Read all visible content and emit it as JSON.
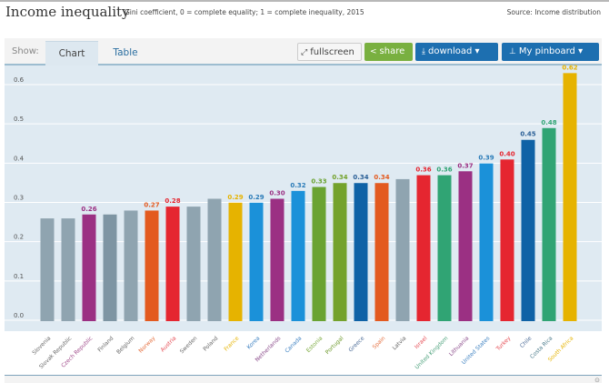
{
  "header": {
    "title": "Income inequality",
    "subtitle": "Gini coefficient, 0 = complete equality; 1 = complete inequality, 2015",
    "source": "Source: Income distribution"
  },
  "toolbar": {
    "show_label": "Show:",
    "tabs": [
      {
        "label": "Chart",
        "active": true
      },
      {
        "label": "Table",
        "active": false
      }
    ],
    "fullscreen_label": "fullscreen",
    "share_label": "share",
    "download_label": "download ▾",
    "pinboard_label": "My pinboard ▾",
    "icons": {
      "fullscreen": "expand-arrows-icon",
      "share": "share-icon",
      "download": "download-icon",
      "pinboard": "pin-icon"
    }
  },
  "corner_icon": "info-icon",
  "chart_data": {
    "type": "bar",
    "title": "Income inequality",
    "subtitle": "Gini coefficient, 0 = complete equality; 1 = complete inequality, 2015",
    "xlabel": "",
    "ylabel": "",
    "ylim": [
      0,
      0.65
    ],
    "yticks": [
      "0.0",
      "0.1",
      "0.2",
      "0.3",
      "0.4",
      "0.5",
      "0.6"
    ],
    "grid": true,
    "categories": [
      "Slovenia",
      "Slovak Republic",
      "Czech Republic",
      "Finland",
      "Belgium",
      "Norway",
      "Austria",
      "Sweden",
      "Poland",
      "France",
      "Korea",
      "Netherlands",
      "Canada",
      "Estonia",
      "Portugal",
      "Greece",
      "Spain",
      "Latvia",
      "Israel",
      "United Kingdom",
      "Lithuania",
      "United States",
      "Turkey",
      "Chile",
      "Costa Rica",
      "South Africa"
    ],
    "values": [
      0.25,
      0.25,
      0.26,
      0.26,
      0.27,
      0.27,
      0.28,
      0.28,
      0.3,
      0.29,
      0.29,
      0.3,
      0.32,
      0.33,
      0.34,
      0.34,
      0.34,
      0.35,
      0.36,
      0.36,
      0.37,
      0.39,
      0.4,
      0.45,
      0.48,
      0.62
    ],
    "labels": [
      "",
      "",
      "0.26",
      "",
      "",
      "0.27",
      "0.28",
      "",
      "",
      "0.29",
      "0.29",
      "0.30",
      "0.32",
      "0.33",
      "0.34",
      "0.34",
      "0.34",
      "",
      "0.36",
      "0.36",
      "0.37",
      "0.39",
      "0.40",
      "0.45",
      "0.48",
      "0.62"
    ],
    "colors": [
      "#8fa4b0",
      "#8fa4b0",
      "#9b3083",
      "#7e95a3",
      "#8fa4b0",
      "#e35a1f",
      "#e52630",
      "#8fa4b0",
      "#8fa4b0",
      "#e6b300",
      "#1b91d9",
      "#9b3083",
      "#1b91d9",
      "#6aa332",
      "#74a22c",
      "#0f62a6",
      "#e35a1f",
      "#8fa4b0",
      "#e52630",
      "#30a474",
      "#9b3083",
      "#1b91d9",
      "#e52630",
      "#0f62a6",
      "#30a474",
      "#e6b300"
    ],
    "label_colors": [
      "#888888",
      "#888888",
      "#9b3083",
      "#888888",
      "#888888",
      "#e35a1f",
      "#e52630",
      "#888888",
      "#888888",
      "#e6b300",
      "#2a7bb8",
      "#9b3083",
      "#2a7bb8",
      "#6aa332",
      "#74a22c",
      "#2a5f96",
      "#e35a1f",
      "#888888",
      "#e52630",
      "#30a474",
      "#9b3083",
      "#2a7bb8",
      "#e52630",
      "#2a5f96",
      "#30a474",
      "#e6b300"
    ],
    "tick_colors": [
      "#666666",
      "#666666",
      "#a04a8a",
      "#666666",
      "#666666",
      "#e56d3c",
      "#e54a52",
      "#666666",
      "#666666",
      "#e6b300",
      "#3a7fc0",
      "#8a4a8a",
      "#3a7fc0",
      "#7aa93c",
      "#6e9a2c",
      "#4a6a96",
      "#e56d3c",
      "#666666",
      "#e54a52",
      "#4aa07a",
      "#8a4a8a",
      "#3a7fc0",
      "#e54a52",
      "#4a6a96",
      "#4a7a8a",
      "#e6b300"
    ]
  }
}
